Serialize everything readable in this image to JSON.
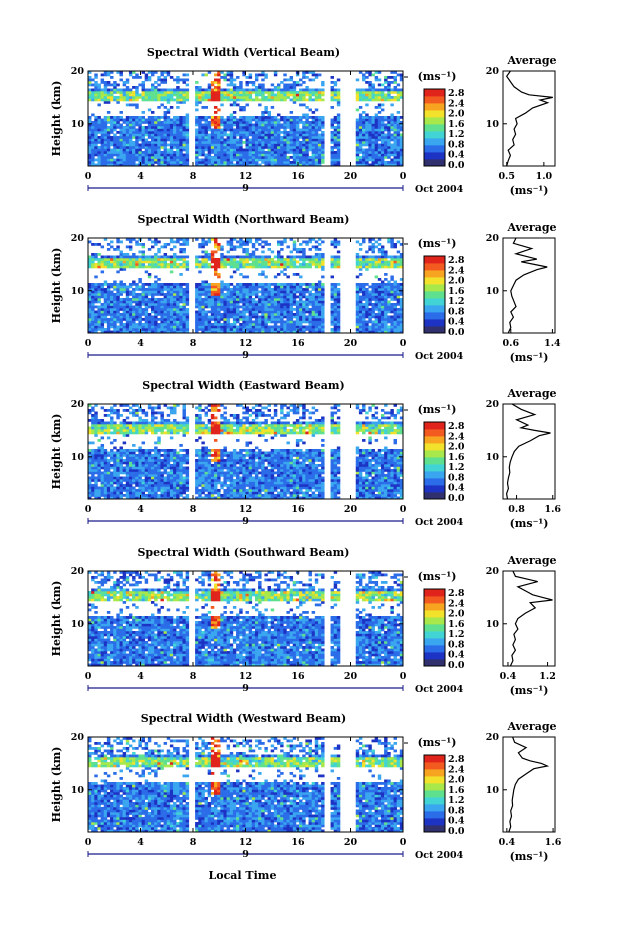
{
  "chart_data": {
    "type": "heatmap",
    "x_axis": {
      "label": "Local Time",
      "ticks": [
        "0",
        "4",
        "8",
        "12",
        "16",
        "20",
        "0"
      ],
      "range": [
        0,
        24
      ],
      "date_marker": "9",
      "date_label": "Oct 2004"
    },
    "colorbar": {
      "unit_label": "(ms⁻¹)",
      "ticks": [
        "0.0",
        "0.4",
        "0.8",
        "1.2",
        "1.6",
        "2.0",
        "2.4",
        "2.8"
      ],
      "range": [
        0.0,
        3.0
      ],
      "colors": [
        "#30306e",
        "#1c33c4",
        "#2b6ce8",
        "#3aa6f0",
        "#42d4d4",
        "#5fe08e",
        "#a8e84a",
        "#f2e22c",
        "#f7a421",
        "#f25a1f",
        "#e0241c"
      ]
    },
    "data_gaps_local_time": [
      [
        7.8,
        8.2
      ],
      [
        18.0,
        18.4
      ],
      [
        19.1,
        20.3
      ]
    ],
    "panels": [
      {
        "title": "Spectral Width (Vertical Beam)",
        "ylabel": "Height (km)",
        "y_ticks": [
          "20",
          "10"
        ],
        "y_range": [
          2,
          20
        ],
        "average": {
          "title": "Average",
          "xlabel": "(ms⁻¹)",
          "x_ticks": [
            "0.5",
            "1.0"
          ],
          "x_range": [
            0.45,
            1.15
          ],
          "y_ticks": [
            "20",
            "10"
          ],
          "profile": [
            [
              2,
              0.5
            ],
            [
              3,
              0.52
            ],
            [
              4,
              0.55
            ],
            [
              5,
              0.52
            ],
            [
              6,
              0.6
            ],
            [
              7,
              0.58
            ],
            [
              8,
              0.62
            ],
            [
              9,
              0.6
            ],
            [
              10,
              0.64
            ],
            [
              11,
              0.62
            ],
            [
              12,
              0.75
            ],
            [
              13,
              0.85
            ],
            [
              14,
              1.05
            ],
            [
              14.5,
              0.95
            ],
            [
              15,
              1.12
            ],
            [
              15.5,
              0.8
            ],
            [
              16,
              0.7
            ],
            [
              17,
              0.6
            ],
            [
              18,
              0.55
            ],
            [
              19,
              0.5
            ],
            [
              20,
              0.55
            ]
          ]
        }
      },
      {
        "title": "Spectral Width (Northward Beam)",
        "ylabel": "Height (km)",
        "y_ticks": [
          "20",
          "10"
        ],
        "y_range": [
          2,
          20
        ],
        "average": {
          "title": "Average",
          "xlabel": "(ms⁻¹)",
          "x_ticks": [
            "0.6",
            "1.4"
          ],
          "x_range": [
            0.45,
            1.45
          ],
          "y_ticks": [
            "20",
            "10"
          ],
          "profile": [
            [
              2,
              0.55
            ],
            [
              3,
              0.6
            ],
            [
              4,
              0.58
            ],
            [
              5,
              0.65
            ],
            [
              6,
              0.6
            ],
            [
              7,
              0.7
            ],
            [
              8,
              0.66
            ],
            [
              9,
              0.62
            ],
            [
              10,
              0.6
            ],
            [
              11,
              0.65
            ],
            [
              12,
              0.7
            ],
            [
              13,
              0.85
            ],
            [
              14,
              1.1
            ],
            [
              14.5,
              1.3
            ],
            [
              15,
              1.05
            ],
            [
              15.5,
              0.8
            ],
            [
              16,
              1.1
            ],
            [
              17,
              0.7
            ],
            [
              18,
              1.0
            ],
            [
              19,
              0.65
            ],
            [
              20,
              0.7
            ]
          ]
        }
      },
      {
        "title": "Spectral Width (Eastward Beam)",
        "ylabel": "Height (km)",
        "y_ticks": [
          "20",
          "10"
        ],
        "y_range": [
          2,
          20
        ],
        "average": {
          "title": "Average",
          "xlabel": "(ms⁻¹)",
          "x_ticks": [
            "0.8",
            "1.6"
          ],
          "x_range": [
            0.5,
            1.65
          ],
          "y_ticks": [
            "20",
            "10"
          ],
          "profile": [
            [
              2,
              0.6
            ],
            [
              3,
              0.58
            ],
            [
              4,
              0.62
            ],
            [
              5,
              0.6
            ],
            [
              6,
              0.62
            ],
            [
              7,
              0.65
            ],
            [
              8,
              0.64
            ],
            [
              9,
              0.66
            ],
            [
              10,
              0.7
            ],
            [
              11,
              0.75
            ],
            [
              12,
              0.85
            ],
            [
              13,
              1.1
            ],
            [
              14,
              1.3
            ],
            [
              14.5,
              1.55
            ],
            [
              15,
              1.2
            ],
            [
              15.5,
              0.9
            ],
            [
              16,
              1.05
            ],
            [
              17,
              0.8
            ],
            [
              18,
              1.2
            ],
            [
              19,
              0.9
            ],
            [
              20,
              0.7
            ]
          ]
        }
      },
      {
        "title": "Spectral Width (Southward Beam)",
        "ylabel": "Height (km)",
        "y_ticks": [
          "20",
          "10"
        ],
        "y_range": [
          2,
          20
        ],
        "average": {
          "title": "Average",
          "xlabel": "(ms⁻¹)",
          "x_ticks": [
            "0.4",
            "1.2"
          ],
          "x_range": [
            0.3,
            1.35
          ],
          "y_ticks": [
            "20",
            "10"
          ],
          "profile": [
            [
              2,
              0.45
            ],
            [
              3,
              0.5
            ],
            [
              4,
              0.48
            ],
            [
              5,
              0.55
            ],
            [
              6,
              0.5
            ],
            [
              7,
              0.55
            ],
            [
              8,
              0.52
            ],
            [
              9,
              0.6
            ],
            [
              10,
              0.55
            ],
            [
              11,
              0.6
            ],
            [
              12,
              0.75
            ],
            [
              13,
              0.95
            ],
            [
              14,
              0.85
            ],
            [
              14.5,
              1.3
            ],
            [
              15,
              1.1
            ],
            [
              15.5,
              0.9
            ],
            [
              16,
              0.8
            ],
            [
              17,
              0.6
            ],
            [
              18,
              1.0
            ],
            [
              19,
              0.55
            ],
            [
              20,
              0.5
            ]
          ]
        }
      },
      {
        "title": "Spectral Width (Westward Beam)",
        "ylabel": "Height (km)",
        "y_ticks": [
          "20",
          "10"
        ],
        "y_range": [
          2,
          20
        ],
        "average": {
          "title": "Average",
          "xlabel": "(ms⁻¹)",
          "x_ticks": [
            "0.4",
            "1.6"
          ],
          "x_range": [
            0.3,
            1.65
          ],
          "y_ticks": [
            "20",
            "10"
          ],
          "profile": [
            [
              2,
              0.45
            ],
            [
              3,
              0.5
            ],
            [
              4,
              0.48
            ],
            [
              5,
              0.52
            ],
            [
              6,
              0.5
            ],
            [
              7,
              0.55
            ],
            [
              8,
              0.54
            ],
            [
              9,
              0.56
            ],
            [
              10,
              0.58
            ],
            [
              11,
              0.62
            ],
            [
              12,
              0.7
            ],
            [
              13,
              0.9
            ],
            [
              14,
              1.1
            ],
            [
              14.5,
              1.45
            ],
            [
              15,
              1.3
            ],
            [
              15.5,
              1.0
            ],
            [
              16,
              0.8
            ],
            [
              17,
              0.7
            ],
            [
              18,
              0.9
            ],
            [
              19,
              0.6
            ],
            [
              20,
              0.55
            ]
          ]
        }
      }
    ]
  }
}
